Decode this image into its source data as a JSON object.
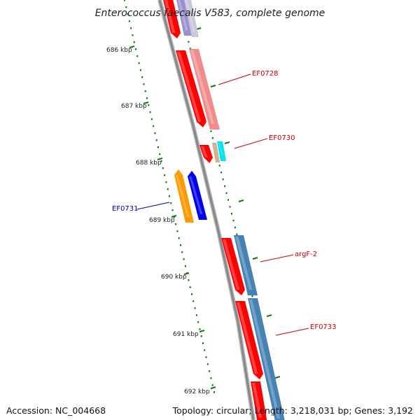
{
  "title": "Enterococcus faecalis V583, complete genome",
  "footer": {
    "accession": "Accession: NC_004668",
    "stats": "Topology: circular; Length: 3,218,031 bp; Genes: 3,192"
  },
  "ruler": {
    "ticks": [
      {
        "label": "686 kbp",
        "kbp": 686
      },
      {
        "label": "687 kbp",
        "kbp": 687
      },
      {
        "label": "688 kbp",
        "kbp": 688
      },
      {
        "label": "689 kbp",
        "kbp": 689
      },
      {
        "label": "690 kbp",
        "kbp": 690
      },
      {
        "label": "691 kbp",
        "kbp": 691
      },
      {
        "label": "692 kbp",
        "kbp": 692
      }
    ]
  },
  "gene_labels": [
    {
      "name": "EF0728",
      "color": "#cc0000"
    },
    {
      "name": "EF0730",
      "color": "#cc0000"
    },
    {
      "name": "EF0731",
      "color": "#0000aa"
    },
    {
      "name": "argF-2",
      "color": "#cc0000"
    },
    {
      "name": "EF0733",
      "color": "#cc0000"
    }
  ],
  "colors": {
    "cds": "#ff0000",
    "cds_light": "#f08c8c",
    "blue_feature": "#4682b4",
    "orange_feature": "#ff9900",
    "dark_blue_feature": "#0000ee",
    "cyan_feature": "#00e5ee",
    "tan_feature": "#c8b48c",
    "lavender_feature": "#9a90d0",
    "backbone": "#888888",
    "tick": "#117711"
  }
}
